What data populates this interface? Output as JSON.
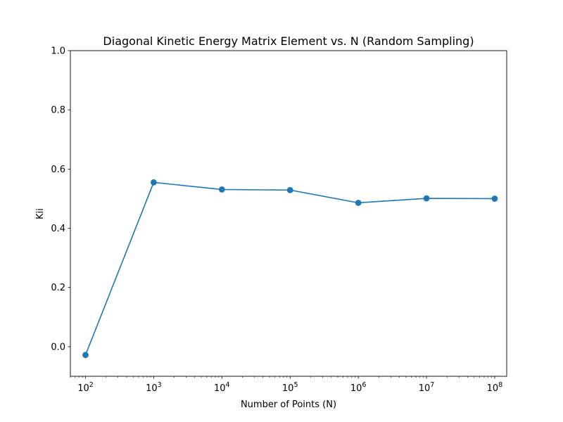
{
  "chart_data": {
    "type": "line",
    "title": "Diagonal Kinetic Energy Matrix Element vs. N (Random Sampling)",
    "xlabel": "Number of Points (N)",
    "ylabel": "Kii",
    "x_scale": "log",
    "xlim": [
      60,
      150000000
    ],
    "ylim": [
      -0.1,
      1.0
    ],
    "x_ticks": [
      {
        "value": 100,
        "base": "10",
        "exp": "2"
      },
      {
        "value": 1000,
        "base": "10",
        "exp": "3"
      },
      {
        "value": 10000,
        "base": "10",
        "exp": "4"
      },
      {
        "value": 100000,
        "base": "10",
        "exp": "5"
      },
      {
        "value": 1000000,
        "base": "10",
        "exp": "6"
      },
      {
        "value": 10000000,
        "base": "10",
        "exp": "7"
      },
      {
        "value": 100000000,
        "base": "10",
        "exp": "8"
      }
    ],
    "y_ticks": [
      {
        "value": 0.0,
        "label": "0.0"
      },
      {
        "value": 0.2,
        "label": "0.2"
      },
      {
        "value": 0.4,
        "label": "0.4"
      },
      {
        "value": 0.6,
        "label": "0.6"
      },
      {
        "value": 0.8,
        "label": "0.8"
      },
      {
        "value": 1.0,
        "label": "1.0"
      }
    ],
    "grid": false,
    "series": [
      {
        "color": "#1f77b4",
        "x": [
          100,
          1000,
          10000,
          100000,
          1000000,
          10000000,
          100000000
        ],
        "y": [
          -0.028,
          0.555,
          0.531,
          0.529,
          0.486,
          0.501,
          0.5
        ]
      }
    ]
  }
}
